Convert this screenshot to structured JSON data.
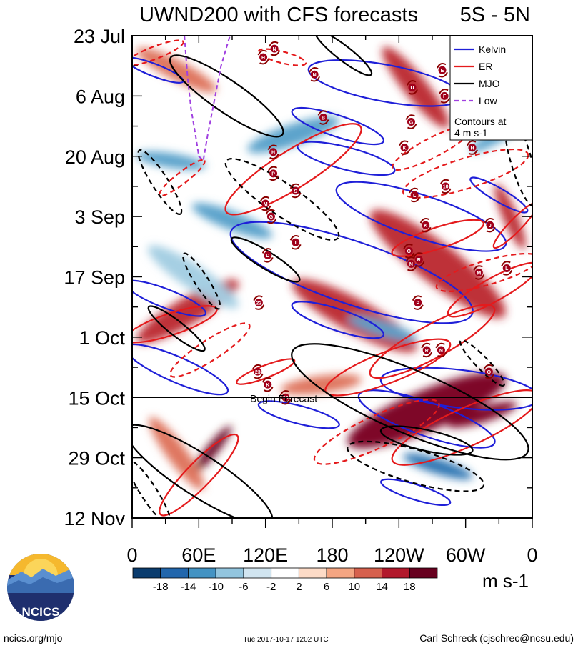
{
  "chart_data": {
    "type": "heatmap",
    "title": "UWND200 with CFS forecasts",
    "region_label": "5S - 5N",
    "xlabel": "",
    "ylabel": "",
    "x_tick_labels": [
      "0",
      "60E",
      "120E",
      "180",
      "120W",
      "60W",
      "0"
    ],
    "x_tick_lon": [
      0,
      60,
      120,
      180,
      240,
      300,
      360
    ],
    "y_tick_labels": [
      "23 Jul",
      "6 Aug",
      "20 Aug",
      "3 Sep",
      "17 Sep",
      "1 Oct",
      "15 Oct",
      "29 Oct",
      "12 Nov"
    ],
    "y_tick_days": [
      0,
      14,
      28,
      42,
      56,
      70,
      84,
      98,
      112
    ],
    "forecast_start_day": 84,
    "forecast_label": "Begin Forecast",
    "legend": {
      "entries": [
        {
          "label": "Kelvin",
          "color": "#1f1fd8"
        },
        {
          "label": "ER",
          "color": "#e41a1c"
        },
        {
          "label": "MJO",
          "color": "#000000"
        },
        {
          "label": "Low",
          "color": "#a040e0"
        }
      ],
      "note_line1": "Contours at",
      "note_line2": "4 m s-1"
    },
    "colorbar": {
      "labels": [
        "-18",
        "-14",
        "-10",
        "-6",
        "-2",
        "2",
        "6",
        "10",
        "14",
        "18"
      ],
      "colors": [
        "#0a3c6e",
        "#2166ac",
        "#4393c3",
        "#92c5de",
        "#d1e5f0",
        "#ffffff",
        "#fddbc7",
        "#f4a582",
        "#d6604d",
        "#b2182b",
        "#67001f"
      ],
      "units": "m s-1"
    },
    "anomaly_bands": [
      {
        "lon0": 200,
        "day0": 94,
        "lon1": 330,
        "day1": 80,
        "v": 16
      },
      {
        "lon0": 150,
        "day0": 58,
        "lon1": 250,
        "day1": 72,
        "v": 12
      },
      {
        "lon0": 220,
        "day0": 42,
        "lon1": 330,
        "day1": 64,
        "v": 10
      },
      {
        "lon0": 10,
        "day0": 70,
        "lon1": 90,
        "day1": 58,
        "v": 10
      },
      {
        "lon0": 60,
        "day0": 100,
        "lon1": 85,
        "day1": 92,
        "v": 18
      },
      {
        "lon0": 250,
        "day0": 98,
        "lon1": 300,
        "day1": 102,
        "v": -14
      },
      {
        "lon0": 60,
        "day0": 40,
        "lon1": 120,
        "day1": 46,
        "v": -10
      },
      {
        "lon0": 10,
        "day0": 4,
        "lon1": 70,
        "day1": 12,
        "v": 8
      },
      {
        "lon0": 230,
        "day0": 4,
        "lon1": 280,
        "day1": 20,
        "v": 10
      },
      {
        "lon0": 330,
        "day0": 36,
        "lon1": 350,
        "day1": 48,
        "v": 12
      },
      {
        "lon0": 110,
        "day0": 26,
        "lon1": 180,
        "day1": 20,
        "v": -8
      },
      {
        "lon0": 10,
        "day0": 28,
        "lon1": 60,
        "day1": 30,
        "v": -8
      },
      {
        "lon0": 140,
        "day0": 82,
        "lon1": 200,
        "day1": 80,
        "v": 8
      },
      {
        "lon0": 200,
        "day0": 66,
        "lon1": 250,
        "day1": 70,
        "v": -8
      },
      {
        "lon0": 290,
        "day0": 90,
        "lon1": 340,
        "day1": 86,
        "v": 14
      },
      {
        "lon0": 20,
        "day0": 90,
        "lon1": 60,
        "day1": 104,
        "v": 6
      },
      {
        "lon0": 310,
        "day0": 26,
        "lon1": 350,
        "day1": 20,
        "v": -10
      },
      {
        "lon0": 20,
        "day0": 50,
        "lon1": 90,
        "day1": 62,
        "v": -6
      }
    ],
    "kelvin_contours": [
      {
        "lon0": 95,
        "day0": 46,
        "lon1": 300,
        "day1": 64
      },
      {
        "lon0": 165,
        "day0": 8,
        "lon1": 290,
        "day1": 14
      },
      {
        "lon0": 150,
        "day0": 18,
        "lon1": 220,
        "day1": 24
      },
      {
        "lon0": 155,
        "day0": 26,
        "lon1": 230,
        "day1": 31
      },
      {
        "lon0": 190,
        "day0": 36,
        "lon1": 330,
        "day1": 48
      },
      {
        "lon0": 150,
        "day0": 63,
        "lon1": 220,
        "day1": 69
      },
      {
        "lon0": 0,
        "day0": 58,
        "lon1": 60,
        "day1": 64
      },
      {
        "lon0": 0,
        "day0": 73,
        "lon1": 80,
        "day1": 82
      },
      {
        "lon0": 230,
        "day0": 80,
        "lon1": 360,
        "day1": 84
      },
      {
        "lon0": 210,
        "day0": 84,
        "lon1": 320,
        "day1": 94
      },
      {
        "lon0": 120,
        "day0": 86,
        "lon1": 180,
        "day1": 90
      },
      {
        "lon0": 230,
        "day0": 104,
        "lon1": 280,
        "day1": 108
      },
      {
        "lon0": 0,
        "day0": 6,
        "lon1": 40,
        "day1": 10
      },
      {
        "lon0": 310,
        "day0": 34,
        "lon1": 350,
        "day1": 40
      }
    ],
    "er_contours": [
      {
        "lon0": 90,
        "day0": 40,
        "lon1": 200,
        "day1": 22,
        "dash": false
      },
      {
        "lon0": 180,
        "day0": 82,
        "lon1": 280,
        "day1": 72,
        "dash": false
      },
      {
        "lon0": 220,
        "day0": 78,
        "lon1": 320,
        "day1": 64,
        "dash": false
      },
      {
        "lon0": 240,
        "day0": 98,
        "lon1": 360,
        "day1": 84,
        "dash": false
      },
      {
        "lon0": 30,
        "day0": 110,
        "lon1": 90,
        "day1": 94,
        "dash": false
      },
      {
        "lon0": 240,
        "day0": 50,
        "lon1": 310,
        "day1": 44,
        "dash": false
      },
      {
        "lon0": 290,
        "day0": 64,
        "lon1": 360,
        "day1": 54,
        "dash": false
      },
      {
        "lon0": 330,
        "day0": 48,
        "lon1": 360,
        "day1": 40,
        "dash": false
      },
      {
        "lon0": 0,
        "day0": 70,
        "lon1": 70,
        "day1": 64,
        "dash": false
      },
      {
        "lon0": 100,
        "day0": 80,
        "lon1": 140,
        "day1": 76,
        "dash": false
      },
      {
        "lon0": 40,
        "day0": 78,
        "lon1": 100,
        "day1": 68,
        "dash": true
      },
      {
        "lon0": 250,
        "day0": 36,
        "lon1": 350,
        "day1": 28,
        "dash": true
      },
      {
        "lon0": 240,
        "day0": 30,
        "lon1": 300,
        "day1": 22,
        "dash": true
      },
      {
        "lon0": 170,
        "day0": 98,
        "lon1": 270,
        "day1": 86,
        "dash": true
      },
      {
        "lon0": 0,
        "day0": 6,
        "lon1": 40,
        "day1": 2,
        "dash": true
      },
      {
        "lon0": 120,
        "day0": 4,
        "lon1": 150,
        "day1": 6,
        "dash": true
      },
      {
        "lon0": 30,
        "day0": 36,
        "lon1": 60,
        "day1": 30,
        "dash": true
      },
      {
        "lon0": 280,
        "day0": 58,
        "lon1": 360,
        "day1": 52,
        "dash": true
      }
    ],
    "mjo_contours": [
      {
        "lon0": 95,
        "day0": 48,
        "lon1": 145,
        "day1": 56,
        "dash": false
      },
      {
        "lon0": 150,
        "day0": 74,
        "lon1": 350,
        "day1": 96,
        "dash": false
      },
      {
        "lon0": 40,
        "day0": 6,
        "lon1": 130,
        "day1": 22,
        "dash": false
      },
      {
        "lon0": 170,
        "day0": 0,
        "lon1": 210,
        "day1": 8,
        "dash": false
      },
      {
        "lon0": 0,
        "day0": 92,
        "lon1": 120,
        "day1": 112,
        "dash": false
      },
      {
        "lon0": 230,
        "day0": 92,
        "lon1": 300,
        "day1": 96,
        "dash": false
      },
      {
        "lon0": 20,
        "day0": 64,
        "lon1": 60,
        "day1": 72,
        "dash": false
      },
      {
        "lon0": 90,
        "day0": 30,
        "lon1": 180,
        "day1": 46,
        "dash": true
      },
      {
        "lon0": 10,
        "day0": 28,
        "lon1": 40,
        "day1": 40,
        "dash": true
      },
      {
        "lon0": 50,
        "day0": 52,
        "lon1": 75,
        "day1": 62,
        "dash": true
      },
      {
        "lon0": 200,
        "day0": 96,
        "lon1": 310,
        "day1": 104,
        "dash": true
      },
      {
        "lon0": 300,
        "day0": 72,
        "lon1": 330,
        "day1": 80,
        "dash": true
      },
      {
        "lon0": 340,
        "day0": 20,
        "lon1": 360,
        "day1": 38,
        "dash": true
      },
      {
        "lon0": 0,
        "day0": 100,
        "lon1": 30,
        "day1": 112,
        "dash": true
      }
    ],
    "low_contour": {
      "lon": [
        47,
        50,
        53,
        57,
        60,
        64,
        68,
        74,
        80,
        88
      ],
      "day": [
        0,
        10,
        17,
        23,
        28,
        29,
        23,
        15,
        7,
        0
      ]
    },
    "storm_markers": [
      {
        "label": "N",
        "lon": 128,
        "day": 3
      },
      {
        "label": "H",
        "lon": 118,
        "day": 5
      },
      {
        "label": "N",
        "lon": 164,
        "day": 9
      },
      {
        "label": "E",
        "lon": 279,
        "day": 8
      },
      {
        "label": "U",
        "lon": 252,
        "day": 12
      },
      {
        "label": "F",
        "lon": 281,
        "day": 14
      },
      {
        "label": "B",
        "lon": 172,
        "day": 19
      },
      {
        "label": "G",
        "lon": 251,
        "day": 20
      },
      {
        "label": "K",
        "lon": 245,
        "day": 26
      },
      {
        "label": "H",
        "lon": 306,
        "day": 26
      },
      {
        "label": "H",
        "lon": 127,
        "day": 27
      },
      {
        "label": "P",
        "lon": 127,
        "day": 32
      },
      {
        "label": "S",
        "lon": 147,
        "day": 36
      },
      {
        "label": "10",
        "lon": 282,
        "day": 35
      },
      {
        "label": "L",
        "lon": 254,
        "day": 37
      },
      {
        "label": "M",
        "lon": 120,
        "day": 39
      },
      {
        "label": "G",
        "lon": 125,
        "day": 42
      },
      {
        "label": "K",
        "lon": 264,
        "day": 44
      },
      {
        "label": "T",
        "lon": 147,
        "day": 48
      },
      {
        "label": "J",
        "lon": 322,
        "day": 44
      },
      {
        "label": "O",
        "lon": 249,
        "day": 50
      },
      {
        "label": "D",
        "lon": 122,
        "day": 51
      },
      {
        "label": "N",
        "lon": 251,
        "day": 53
      },
      {
        "label": "R",
        "lon": 258,
        "day": 52
      },
      {
        "label": "L",
        "lon": 337,
        "day": 54
      },
      {
        "label": "M",
        "lon": 312,
        "day": 55
      },
      {
        "label": "22",
        "lon": 114,
        "day": 62
      },
      {
        "label": "P",
        "lon": 257,
        "day": 62
      },
      {
        "label": "R",
        "lon": 265,
        "day": 73
      },
      {
        "label": "N",
        "lon": 278,
        "day": 73
      },
      {
        "label": "23",
        "lon": 113,
        "day": 78
      },
      {
        "label": "O",
        "lon": 321,
        "day": 78
      },
      {
        "label": "K",
        "lon": 122,
        "day": 81
      },
      {
        "label": "25",
        "lon": 138,
        "day": 84
      }
    ]
  },
  "footer": {
    "logo_text": "NCICS",
    "site": "ncics.org/mjo",
    "timestamp": "Tue 2017-10-17 1202 UTC",
    "credit": "Carl Schreck (cjschrec@ncsu.edu)"
  }
}
